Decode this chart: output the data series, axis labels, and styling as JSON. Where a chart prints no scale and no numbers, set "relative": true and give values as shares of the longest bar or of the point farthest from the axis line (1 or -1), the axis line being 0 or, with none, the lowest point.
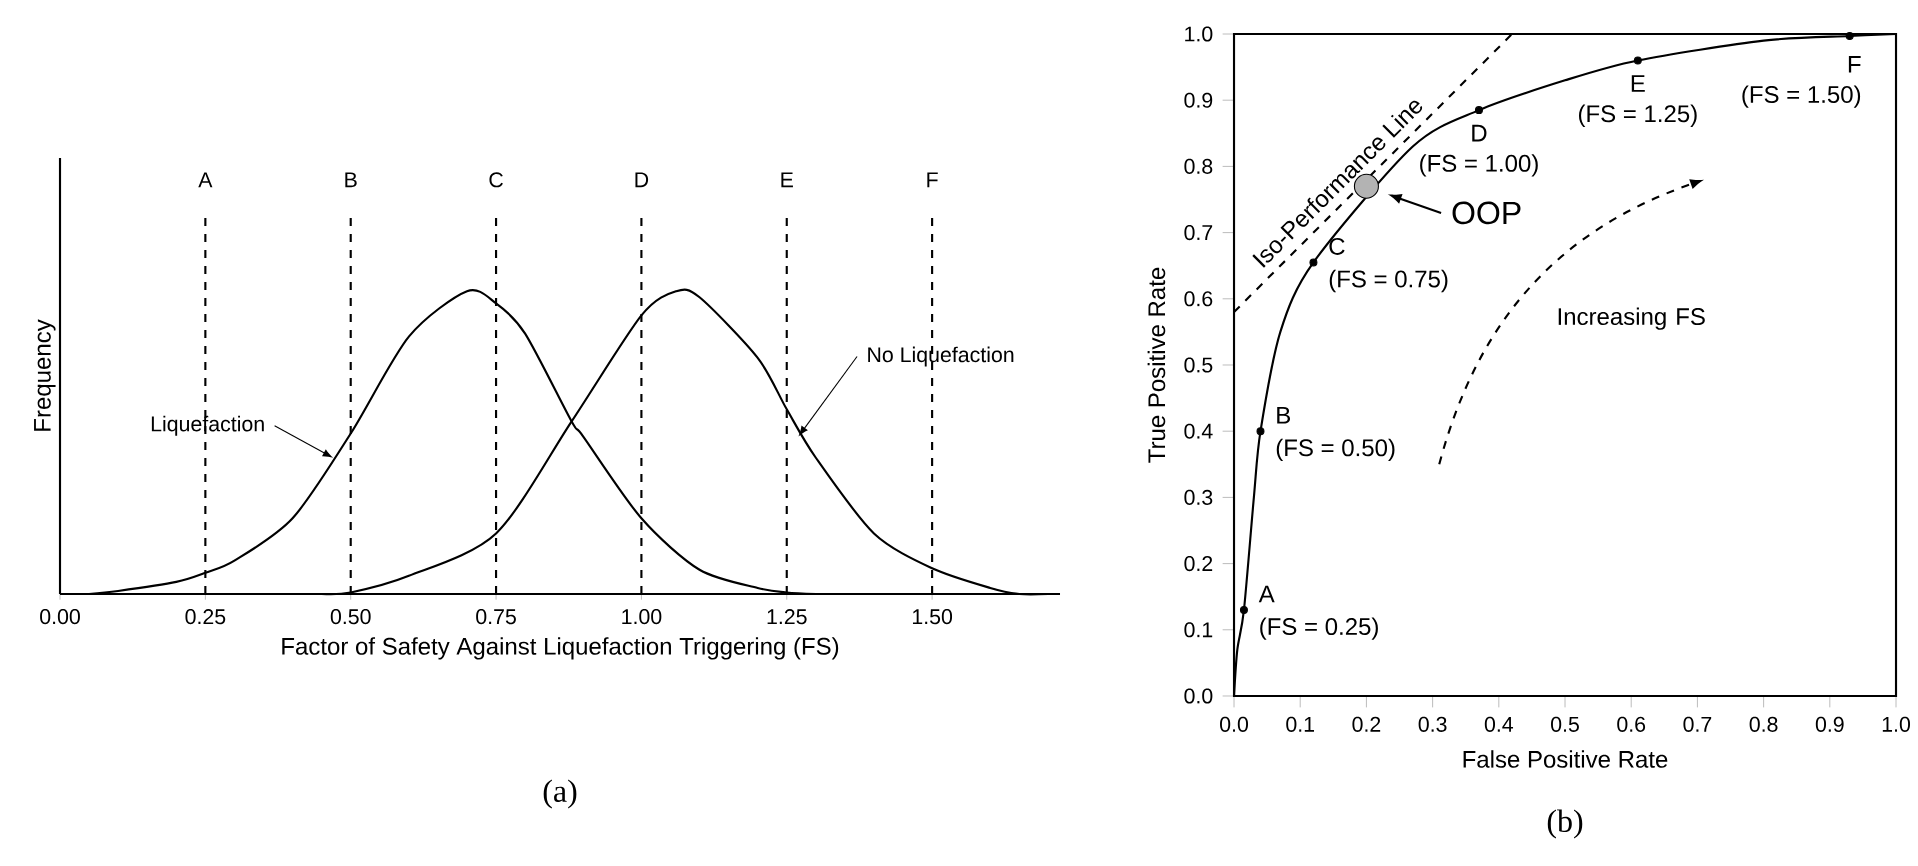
{
  "chart_data": [
    {
      "type": "line",
      "title": "(a)",
      "xlabel": "Factor of Safety Against Liquefaction Triggering (FS)",
      "ylabel": "Frequency",
      "relative": true,
      "xlim": [
        0,
        1.72
      ],
      "xticks": [
        {
          "value": 0,
          "label": "0.00"
        },
        {
          "value": 0.25,
          "label": "0.25"
        },
        {
          "value": 0.5,
          "label": "0.50"
        },
        {
          "value": 0.75,
          "label": "0.75"
        },
        {
          "value": 1.0,
          "label": "1.00"
        },
        {
          "value": 1.25,
          "label": "1.25"
        },
        {
          "value": 1.5,
          "label": "1.50"
        }
      ],
      "series": [
        {
          "color": "#000000",
          "x": [
            0.05,
            0.1,
            0.2,
            0.25,
            0.3,
            0.4,
            0.5,
            0.6,
            0.7,
            0.75,
            0.8,
            0.88,
            0.9,
            1.0,
            1.1,
            1.2,
            1.25,
            1.3
          ],
          "values": [
            0,
            0.01,
            0.04,
            0.07,
            0.11,
            0.25,
            0.53,
            0.85,
            1.0,
            0.96,
            0.86,
            0.57,
            0.52,
            0.25,
            0.08,
            0.02,
            0.005,
            0
          ]
        },
        {
          "color": "#000000",
          "x": [
            0.45,
            0.5,
            0.6,
            0.75,
            0.88,
            1.0,
            1.06,
            1.1,
            1.2,
            1.25,
            1.3,
            1.4,
            1.5,
            1.6,
            1.65,
            1.7
          ],
          "values": [
            0,
            0.005,
            0.06,
            0.2,
            0.57,
            0.92,
            1.0,
            0.98,
            0.78,
            0.61,
            0.45,
            0.2,
            0.085,
            0.02,
            0,
            0
          ]
        }
      ],
      "ref_lines": [
        {
          "axis": "x",
          "value": 0.25,
          "label": "A",
          "color": "#000000",
          "line_style": "dashed"
        },
        {
          "axis": "x",
          "value": 0.5,
          "label": "B",
          "color": "#000000",
          "line_style": "dashed"
        },
        {
          "axis": "x",
          "value": 0.75,
          "label": "C",
          "color": "#000000",
          "line_style": "dashed"
        },
        {
          "axis": "x",
          "value": 1.0,
          "label": "D",
          "color": "#000000",
          "line_style": "dashed"
        },
        {
          "axis": "x",
          "value": 1.25,
          "label": "E",
          "color": "#000000",
          "line_style": "dashed"
        },
        {
          "axis": "x",
          "value": 1.5,
          "label": "F",
          "color": "#000000",
          "line_style": "dashed"
        }
      ],
      "annotations": [
        {
          "text": "Liquefaction",
          "x": 0.47,
          "y": 0.45
        },
        {
          "text": "No Liquefaction",
          "x": 1.27,
          "y": 0.52
        }
      ]
    },
    {
      "type": "line",
      "title": "(b)",
      "xlabel": "False Positive Rate",
      "ylabel": "True Positive Rate",
      "xlim": [
        0,
        1
      ],
      "ylim": [
        0,
        1
      ],
      "xticks": [
        {
          "value": 0,
          "label": "0.0"
        },
        {
          "value": 0.1,
          "label": "0.1"
        },
        {
          "value": 0.2,
          "label": "0.2"
        },
        {
          "value": 0.3,
          "label": "0.3"
        },
        {
          "value": 0.4,
          "label": "0.4"
        },
        {
          "value": 0.5,
          "label": "0.5"
        },
        {
          "value": 0.6,
          "label": "0.6"
        },
        {
          "value": 0.7,
          "label": "0.7"
        },
        {
          "value": 0.8,
          "label": "0.8"
        },
        {
          "value": 0.9,
          "label": "0.9"
        },
        {
          "value": 1,
          "label": "1.0"
        }
      ],
      "yticks": [
        {
          "value": 0,
          "label": "0.0"
        },
        {
          "value": 0.1,
          "label": "0.1"
        },
        {
          "value": 0.2,
          "label": "0.2"
        },
        {
          "value": 0.3,
          "label": "0.3"
        },
        {
          "value": 0.4,
          "label": "0.4"
        },
        {
          "value": 0.5,
          "label": "0.5"
        },
        {
          "value": 0.6,
          "label": "0.6"
        },
        {
          "value": 0.7,
          "label": "0.7"
        },
        {
          "value": 0.8,
          "label": "0.8"
        },
        {
          "value": 0.9,
          "label": "0.9"
        },
        {
          "value": 1,
          "label": "1.0"
        }
      ],
      "series": [
        {
          "color": "#000000",
          "marker": "none",
          "line_style": "solid",
          "x": [
            0,
            0.005,
            0.015,
            0.03,
            0.04,
            0.07,
            0.12,
            0.2,
            0.27,
            0.37,
            0.5,
            0.61,
            0.8,
            0.93,
            1
          ],
          "values": [
            0,
            0.07,
            0.13,
            0.3,
            0.4,
            0.55,
            0.655,
            null,
            0.83,
            0.885,
            0.93,
            0.96,
            0.99,
            0.997,
            1
          ]
        },
        {
          "type": "line",
          "name": "Iso-Performance Line",
          "color": "#000000",
          "marker": "none",
          "line_style": "dashed",
          "x": [
            0,
            0.42
          ],
          "values": [
            0.58,
            1.0
          ]
        },
        {
          "type": "scatter",
          "color": "#000000",
          "marker": "circle",
          "x": [
            0.015,
            0.04,
            0.12,
            0.37,
            0.61,
            0.93
          ],
          "values": [
            0.13,
            0.4,
            0.655,
            0.885,
            0.96,
            0.997
          ]
        },
        {
          "type": "scatter",
          "color": "#b3b3b3",
          "marker": "circle",
          "x": [
            0.2
          ],
          "values": [
            0.77
          ]
        }
      ],
      "annotations": [
        {
          "text": "A",
          "x": 0.015,
          "y": 0.13
        },
        {
          "text": "(FS = 0.25)",
          "x": 0.015,
          "y": 0.13
        },
        {
          "text": "B",
          "x": 0.04,
          "y": 0.4
        },
        {
          "text": "(FS = 0.50)",
          "x": 0.04,
          "y": 0.4
        },
        {
          "text": "C",
          "x": 0.12,
          "y": 0.655
        },
        {
          "text": "(FS = 0.75)",
          "x": 0.12,
          "y": 0.655
        },
        {
          "text": "D",
          "x": 0.37,
          "y": 0.885
        },
        {
          "text": "(FS = 1.00)",
          "x": 0.37,
          "y": 0.885
        },
        {
          "text": "E",
          "x": 0.61,
          "y": 0.96
        },
        {
          "text": "(FS = 1.25)",
          "x": 0.61,
          "y": 0.96
        },
        {
          "text": "F",
          "x": 0.93,
          "y": 0.997
        },
        {
          "text": "(FS = 1.50)",
          "x": 0.93,
          "y": 0.997
        },
        {
          "text": "OOP",
          "x": 0.2,
          "y": 0.77
        },
        "Increasing FS"
      ]
    }
  ]
}
